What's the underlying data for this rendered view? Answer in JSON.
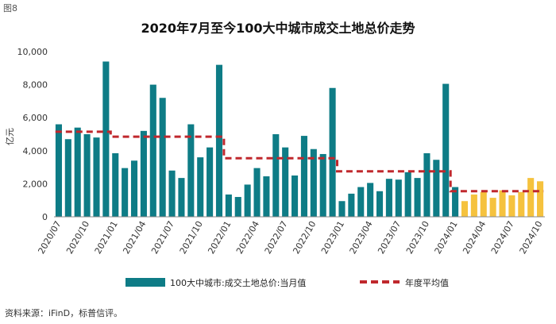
{
  "figure_label": "图8",
  "source": "资料来源：iFinD，标普信评。",
  "colors": {
    "bar": "#0e7c86",
    "forecast_bar": "#f5c23e",
    "avg_line": "#c0282d",
    "axis": "#888888"
  },
  "chart_data": {
    "type": "bar",
    "title": "2020年7月至今100大中城市成交土地总价走势",
    "xlabel": "",
    "ylabel": "亿元",
    "ylim": [
      0,
      10000
    ],
    "yticks": [
      "0",
      "2,000",
      "4,000",
      "6,000",
      "8,000",
      "10,000"
    ],
    "ytick_values": [
      0,
      2000,
      4000,
      6000,
      8000,
      10000
    ],
    "categories": [
      "2020/07",
      "2020/08",
      "2020/09",
      "2020/10",
      "2020/11",
      "2020/12",
      "2021/01",
      "2021/02",
      "2021/03",
      "2021/04",
      "2021/05",
      "2021/06",
      "2021/07",
      "2021/08",
      "2021/09",
      "2021/10",
      "2021/11",
      "2021/12",
      "2022/01",
      "2022/02",
      "2022/03",
      "2022/04",
      "2022/05",
      "2022/06",
      "2022/07",
      "2022/08",
      "2022/09",
      "2022/10",
      "2022/11",
      "2022/12",
      "2023/01",
      "2023/02",
      "2023/03",
      "2023/04",
      "2023/05",
      "2023/06",
      "2023/07",
      "2023/08",
      "2023/09",
      "2023/10",
      "2023/11",
      "2023/12",
      "2024/01",
      "2024/02",
      "2024/03",
      "2024/04",
      "2024/05",
      "2024/06",
      "2024/07",
      "2024/08",
      "2024/09",
      "2024/10"
    ],
    "xtick_labels": [
      "2020/07",
      "2020/10",
      "2021/01",
      "2021/04",
      "2021/07",
      "2021/10",
      "2022/01",
      "2022/04",
      "2022/07",
      "2022/10",
      "2023/01",
      "2023/04",
      "2023/07",
      "2023/10",
      "2024/01",
      "2024/04",
      "2024/07",
      "2024/10"
    ],
    "series": [
      {
        "name": "100大中城市:成交土地总价:当月值",
        "type": "bar",
        "values": [
          5600,
          4700,
          5400,
          5000,
          4800,
          9400,
          3850,
          2950,
          3400,
          5200,
          8000,
          7200,
          2800,
          2350,
          5600,
          3600,
          4200,
          9200,
          1350,
          1200,
          1950,
          2950,
          2450,
          5000,
          4200,
          2500,
          4900,
          4100,
          3800,
          7800,
          950,
          1400,
          1800,
          2050,
          1550,
          2300,
          2250,
          2700,
          2350,
          3850,
          3450,
          8050,
          1800,
          950,
          1350,
          1500,
          1150,
          1600,
          1300,
          1500,
          2350,
          2150
        ]
      },
      {
        "name": "年度平均值",
        "type": "line",
        "values": [
          5150,
          5150,
          5150,
          5150,
          5150,
          5150,
          4850,
          4850,
          4850,
          4850,
          4850,
          4850,
          4850,
          4850,
          4850,
          4850,
          4850,
          4850,
          3550,
          3550,
          3550,
          3550,
          3550,
          3550,
          3550,
          3550,
          3550,
          3550,
          3550,
          3550,
          2750,
          2750,
          2750,
          2750,
          2750,
          2750,
          2750,
          2750,
          2750,
          2750,
          2750,
          2750,
          1550,
          1550,
          1550,
          1550,
          1550,
          1550,
          1550,
          1550,
          1550,
          1550
        ]
      }
    ],
    "forecast_start_index": 43,
    "legend": {
      "position": "bottom",
      "items": [
        "100大中城市:成交土地总价:当月值",
        "年度平均值"
      ]
    }
  }
}
